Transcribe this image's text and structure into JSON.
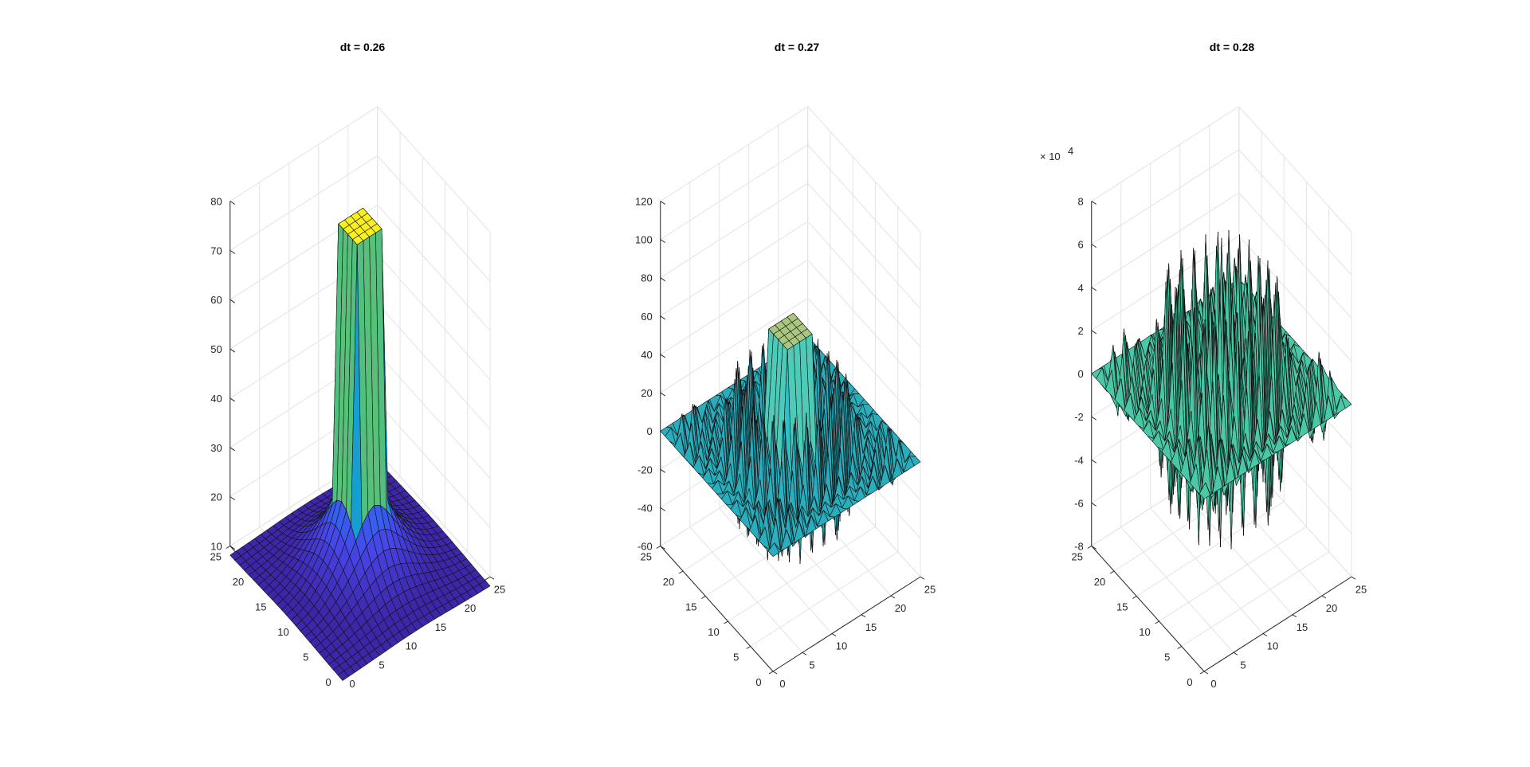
{
  "chart_data": [
    {
      "type": "surface",
      "title": "dt = 0.26",
      "x_ticks": [
        "0",
        "5",
        "10",
        "15",
        "20",
        "25"
      ],
      "y_ticks": [
        "0",
        "5",
        "10",
        "15",
        "20",
        "25"
      ],
      "z_ticks": [
        "10",
        "20",
        "30",
        "40",
        "50",
        "60",
        "70",
        "80"
      ],
      "xlim": [
        0,
        25
      ],
      "ylim": [
        0,
        25
      ],
      "zlim": [
        10,
        80
      ],
      "grid": true,
      "colormap": [
        "#3e26a8",
        "#4743e6",
        "#2c73f5",
        "#1997db",
        "#12b3b4",
        "#3fc08c",
        "#9bc14d",
        "#e6b932",
        "#fcd035",
        "#f9fb15"
      ],
      "surface": {
        "shape": "smooth peak",
        "peak_value": 78,
        "plateau_center": [
          12,
          12
        ],
        "grid_size": 24
      }
    },
    {
      "type": "surface",
      "title": "dt = 0.27",
      "x_ticks": [
        "0",
        "5",
        "10",
        "15",
        "20",
        "25"
      ],
      "y_ticks": [
        "0",
        "5",
        "10",
        "15",
        "20",
        "25"
      ],
      "z_ticks": [
        "-60",
        "-40",
        "-20",
        "0",
        "20",
        "40",
        "60",
        "80",
        "100",
        "120"
      ],
      "xlim": [
        0,
        25
      ],
      "ylim": [
        0,
        25
      ],
      "zlim": [
        -60,
        120
      ],
      "grid": true,
      "colormap": [
        "#0f1a40",
        "#1b5f80",
        "#27a1b8",
        "#2ec7c7",
        "#6fd0a8",
        "#c8c36a",
        "#f5b83a",
        "#fde74c"
      ],
      "surface": {
        "shape": "oscillating checkerboard",
        "plateau_value": 60,
        "spike_amplitude": 50,
        "grid_size": 24
      }
    },
    {
      "type": "surface",
      "title": "dt = 0.28",
      "x_ticks": [
        "0",
        "5",
        "10",
        "15",
        "20",
        "25"
      ],
      "y_ticks": [
        "0",
        "5",
        "10",
        "15",
        "20",
        "25"
      ],
      "z_ticks": [
        "-8",
        "-6",
        "-4",
        "-2",
        "0",
        "2",
        "4",
        "6",
        "8"
      ],
      "z_exponent_label": "× 10",
      "z_exponent": "4",
      "xlim": [
        0,
        25
      ],
      "ylim": [
        0,
        25
      ],
      "zlim": [
        -8,
        8
      ],
      "grid": true,
      "colormap": [
        "#0f1a40",
        "#1b5f80",
        "#27a1b8",
        "#34c7b4",
        "#5ec99b",
        "#9ccb6f",
        "#d6be45",
        "#fde74c"
      ],
      "surface": {
        "shape": "oscillating checkerboard",
        "plateau_value": 0,
        "spike_amplitude": 7,
        "grid_size": 24
      }
    }
  ]
}
